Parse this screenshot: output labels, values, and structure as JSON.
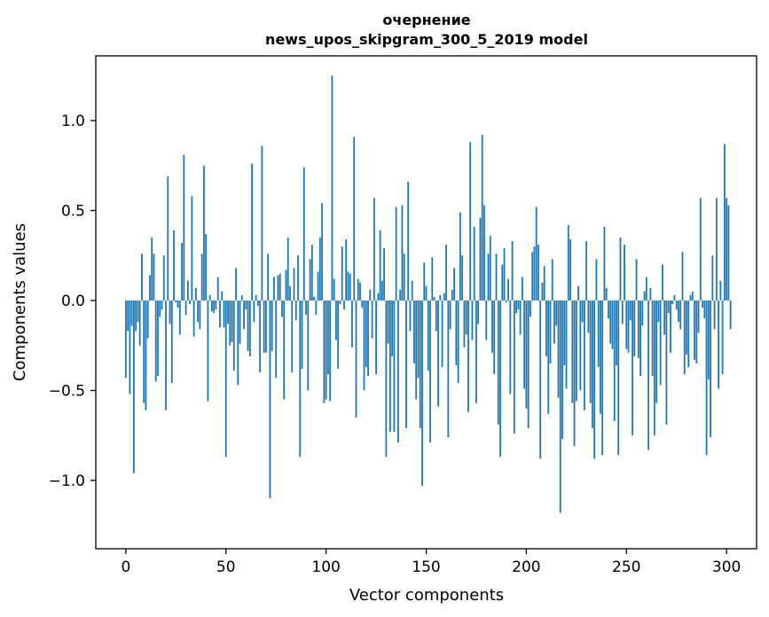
{
  "chart_data": {
    "type": "bar",
    "title": [
      "очернение",
      "news_upos_skipgram_300_5_2019 model"
    ],
    "xlabel": "Vector components",
    "ylabel": "Components values",
    "xlim": [
      -15,
      315
    ],
    "ylim": [
      -1.38,
      1.36
    ],
    "xticks": [
      0,
      50,
      100,
      150,
      200,
      250,
      300
    ],
    "xtick_labels": [
      "0",
      "50",
      "100",
      "150",
      "200",
      "250",
      "300"
    ],
    "yticks": [
      -1.0,
      -0.5,
      0.0,
      0.5,
      1.0
    ],
    "ytick_labels": [
      "−1.0",
      "−0.5",
      "0.0",
      "0.5",
      "1.0"
    ],
    "bar_color": "#1f77b4",
    "grid": false,
    "values": [
      -0.43,
      -0.17,
      -0.52,
      -0.14,
      -0.96,
      -0.17,
      -0.12,
      -0.25,
      0.26,
      -0.57,
      -0.61,
      -0.21,
      0.14,
      0.35,
      0.26,
      -0.45,
      -0.42,
      -0.09,
      -0.05,
      0.25,
      -0.61,
      0.69,
      -0.13,
      -0.46,
      0.39,
      -0.01,
      -0.04,
      -0.19,
      0.32,
      0.81,
      -0.08,
      0.11,
      -0.02,
      0.58,
      -0.2,
      0.07,
      -0.12,
      -0.16,
      0.26,
      0.75,
      0.37,
      -0.56,
      0.03,
      -0.06,
      -0.07,
      -0.05,
      0.13,
      -0.15,
      0.05,
      -0.15,
      -0.87,
      -0.13,
      -0.25,
      -0.23,
      -0.39,
      0.18,
      -0.47,
      -0.24,
      0.03,
      -0.16,
      -0.05,
      -0.28,
      -0.31,
      0.76,
      -0.12,
      0.03,
      -0.03,
      -0.4,
      0.86,
      -0.29,
      -0.29,
      0.26,
      -1.1,
      -0.28,
      0.13,
      -0.43,
      0.14,
      0.15,
      -0.09,
      -0.55,
      0.17,
      0.35,
      0.08,
      -0.4,
      0.18,
      -0.11,
      0.25,
      -0.87,
      -0.38,
      0.74,
      -0.08,
      -0.5,
      0.23,
      0.31,
      0.02,
      -0.08,
      0.16,
      0.35,
      0.54,
      -0.57,
      -0.55,
      -0.41,
      -0.56,
      1.25,
      0.12,
      -0.22,
      -0.38,
      -0.02,
      0.3,
      -0.05,
      0.34,
      0.16,
      0.15,
      -0.26,
      0.91,
      -0.65,
      0.12,
      0.1,
      -0.04,
      -0.5,
      -0.37,
      -0.42,
      0.06,
      -0.21,
      0.57,
      -0.41,
      0.04,
      0.39,
      0.11,
      0.29,
      -0.87,
      -0.24,
      -0.73,
      -0.31,
      -0.73,
      0.52,
      -0.79,
      0.06,
      0.53,
      0.26,
      -0.71,
      0.66,
      -0.17,
      0.11,
      -0.35,
      -0.55,
      -0.43,
      -0.71,
      -1.03,
      0.21,
      0.08,
      -0.39,
      -0.79,
      0.24,
      0.02,
      -0.17,
      -0.59,
      0.03,
      -0.37,
      0.04,
      0.31,
      -0.76,
      -0.16,
      0.06,
      0.18,
      -0.36,
      -0.46,
      0.49,
      0.25,
      -0.26,
      -0.19,
      -0.62,
      0.88,
      -0.22,
      0.41,
      -0.57,
      -0.13,
      0.46,
      0.92,
      0.53,
      -0.22,
      0.26,
      0.36,
      -0.29,
      -0.41,
      0.26,
      -0.69,
      -0.87,
      0.2,
      0.29,
      -0.01,
      0.12,
      -0.52,
      0.33,
      -0.74,
      -0.07,
      -0.05,
      -0.19,
      0.13,
      -0.49,
      -0.6,
      -0.71,
      -0.09,
      0.27,
      0.3,
      0.52,
      0.31,
      -0.88,
      0.1,
      0.19,
      -0.31,
      -0.63,
      -0.35,
      0.23,
      -0.24,
      -0.14,
      -0.54,
      -1.18,
      -0.77,
      -0.36,
      -0.49,
      0.42,
      0.34,
      -0.57,
      -0.81,
      -0.56,
      0.08,
      -0.5,
      -0.12,
      -0.61,
      0.33,
      -0.18,
      -0.57,
      -0.71,
      -0.88,
      0.23,
      -0.37,
      -0.63,
      -0.86,
      0.41,
      0.07,
      -0.1,
      -0.24,
      -0.27,
      -0.67,
      -0.36,
      -0.86,
      0.35,
      -0.13,
      0.31,
      -0.27,
      -0.29,
      -0.11,
      -0.75,
      -0.31,
      0.23,
      -0.32,
      -0.42,
      -0.14,
      0.05,
      0.13,
      -0.83,
      0.07,
      -0.42,
      -0.75,
      -0.57,
      -0.12,
      -0.47,
      0.2,
      -0.19,
      -0.69,
      -0.07,
      -0.29,
      -0.02,
      0.03,
      -0.05,
      -0.12,
      -0.16,
      0.27,
      -0.41,
      -0.3,
      -0.37,
      0.03,
      0.05,
      -0.33,
      -0.35,
      -0.18,
      0.57,
      -0.04,
      -0.1,
      -0.86,
      -0.44,
      -0.76,
      0.25,
      -0.16,
      0.57,
      -0.49,
      0.11,
      -0.41,
      0.87,
      0.57,
      0.53,
      -0.16
    ]
  }
}
